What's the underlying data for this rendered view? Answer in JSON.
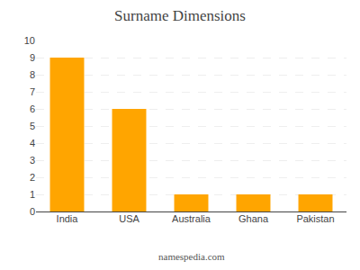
{
  "chart_data": {
    "type": "bar",
    "title": "Surname Dimensions",
    "categories": [
      "India",
      "USA",
      "Australia",
      "Ghana",
      "Pakistan"
    ],
    "values": [
      9,
      6,
      1,
      1,
      1
    ],
    "color": "#FFA500",
    "ylim": [
      0,
      10
    ],
    "yticks": [
      0,
      1,
      2,
      3,
      4,
      5,
      6,
      7,
      8,
      9,
      10
    ],
    "grid": true,
    "annotations": [
      "namespedia.com"
    ]
  }
}
